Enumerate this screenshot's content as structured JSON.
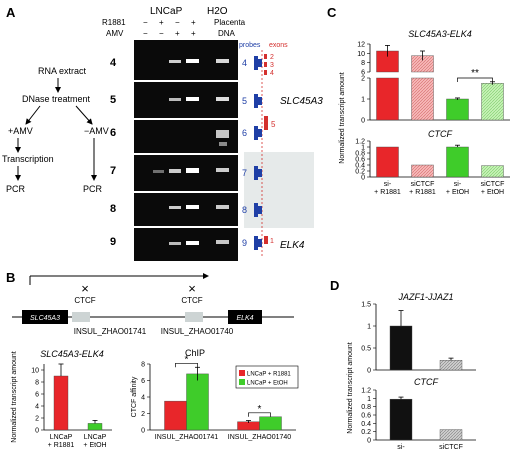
{
  "panel_a": {
    "letter": "A",
    "header_lncap": "LNCaP",
    "header_h2o": "H2O",
    "r1881_label": "R1881",
    "amv_label": "AMV",
    "r1881_signs": [
      "−",
      "+",
      "−",
      "+"
    ],
    "amv_signs": [
      "−",
      "−",
      "+",
      "+"
    ],
    "placenta_label": "Placenta",
    "dna_label": "DNA",
    "lane_numbers": [
      "4",
      "5",
      "6",
      "7",
      "8",
      "9"
    ],
    "flow": {
      "rna": "RNA extract",
      "dnase": "DNase treatment",
      "plus_amv": "+AMV",
      "minus_amv": "−AMV",
      "transcription": "Transcription",
      "pcr_left": "PCR",
      "pcr_right": "PCR"
    },
    "probes_label": "probes",
    "exons_label": "exons",
    "probe_numbers": [
      "4",
      "5",
      "6",
      "7",
      "8",
      "9"
    ],
    "exon_numbers": [
      "2",
      "3",
      "4",
      "5",
      "1"
    ],
    "gene_slc": "SLC45A3",
    "gene_elk": "ELK4"
  },
  "panel_b": {
    "letter": "B",
    "ctcf_left": "CTCF",
    "ctcf_right": "CTCF",
    "gene_slc": "SLC45A3",
    "gene_elk": "ELK4",
    "insul_1741": "INSUL_ZHAO01741",
    "insul_1740": "INSUL_ZHAO01740"
  },
  "panel_c": {
    "letter": "C"
  },
  "panel_d": {
    "letter": "D"
  },
  "chart_data": [
    {
      "id": "b_left",
      "type": "bar",
      "title": "SLC45A3-ELK4",
      "ylabel": "Normalized transcript amount",
      "categories": [
        "LNCaP + R1881",
        "LNCaP + EtOH"
      ],
      "values": [
        9,
        1.1
      ],
      "errors": [
        2,
        0.5
      ],
      "ylim": [
        0,
        11
      ],
      "yticks": [
        "0",
        "2",
        "4",
        "6",
        "8",
        "10"
      ],
      "xtick_labels": [
        [
          "LNCaP",
          "+ R1881"
        ],
        [
          "LNCaP",
          "+ EtOH"
        ]
      ],
      "colors": [
        "#e8262a",
        "#3fcc2a"
      ]
    },
    {
      "id": "b_right",
      "type": "bar",
      "title": "ChIP",
      "ylabel": "CTCF affinity",
      "categories": [
        "INSUL_ZHAO01741",
        "INSUL_ZHAO01740"
      ],
      "series": [
        {
          "name": "LNCaP + R1881",
          "values": [
            3.5,
            1.0
          ],
          "errors": [
            0,
            0.15
          ],
          "color": "#e8262a"
        },
        {
          "name": "LNCaP + EtOH",
          "values": [
            6.8,
            1.6
          ],
          "errors": [
            0.8,
            0
          ],
          "color": "#3fcc2a"
        }
      ],
      "ylim": [
        0,
        8
      ],
      "yticks": [
        "0",
        "2",
        "4",
        "6",
        "8"
      ],
      "significance": [
        "*",
        "*"
      ],
      "legend": "top-right"
    },
    {
      "id": "c_top",
      "type": "bar",
      "title": "SLC45A3-ELK4",
      "categories": [
        "si- + R1881",
        "siCTCF + R1881",
        "si- + EtOH",
        "siCTCF + EtOH"
      ],
      "values": [
        10.5,
        9.5,
        1.0,
        1.75
      ],
      "errors": [
        1.2,
        1.0,
        0.05,
        0.07
      ],
      "yticks": [
        "0",
        "1",
        "2",
        "6",
        "8",
        "10",
        "12"
      ],
      "broken_axis": true,
      "significance": "**",
      "colors": [
        "#e8262a",
        "#f4a6a6",
        "#3fcc2a",
        "#b8efa8"
      ]
    },
    {
      "id": "c_bottom",
      "type": "bar",
      "title": "CTCF",
      "ylabel": "Normalized transcript amount",
      "categories": [
        "si- + R1881",
        "siCTCF + R1881",
        "si- + EtOH",
        "siCTCF + EtOH"
      ],
      "values": [
        1.0,
        0.4,
        1.0,
        0.38
      ],
      "errors": [
        0,
        0,
        0.06,
        0
      ],
      "ylim": [
        0,
        1.2
      ],
      "yticks": [
        "0",
        "0.2",
        "0.4",
        "0.6",
        "0.8",
        "1",
        "1.2"
      ],
      "xtick_labels": [
        [
          "si-",
          "+ R1881"
        ],
        [
          "siCTCF",
          "+ R1881"
        ],
        [
          "si-",
          "+ EtOH"
        ],
        [
          "siCTCF",
          "+ EtOH"
        ]
      ],
      "colors": [
        "#e8262a",
        "#f4a6a6",
        "#3fcc2a",
        "#b8efa8"
      ]
    },
    {
      "id": "d_top",
      "type": "bar",
      "title": "JAZF1-JJAZ1",
      "categories": [
        "si-",
        "siCTCF"
      ],
      "values": [
        1.0,
        0.22
      ],
      "errors": [
        0.35,
        0.05
      ],
      "ylim": [
        0,
        1.5
      ],
      "yticks": [
        "0",
        "0.5",
        "1",
        "1.5"
      ],
      "colors": [
        "#111111",
        "#bbbbbb"
      ]
    },
    {
      "id": "d_bottom",
      "type": "bar",
      "title": "CTCF",
      "ylabel": "Normalized transcript amount",
      "categories": [
        "si-",
        "siCTCF"
      ],
      "values": [
        0.98,
        0.25
      ],
      "errors": [
        0.05,
        0
      ],
      "ylim": [
        0,
        1.2
      ],
      "yticks": [
        "0",
        "0.2",
        "0.4",
        "0.6",
        "0.8",
        "1",
        "1.2"
      ],
      "xtick_labels": [
        [
          "si-"
        ],
        [
          "siCTCF"
        ]
      ],
      "colors": [
        "#111111",
        "#bbbbbb"
      ]
    }
  ]
}
